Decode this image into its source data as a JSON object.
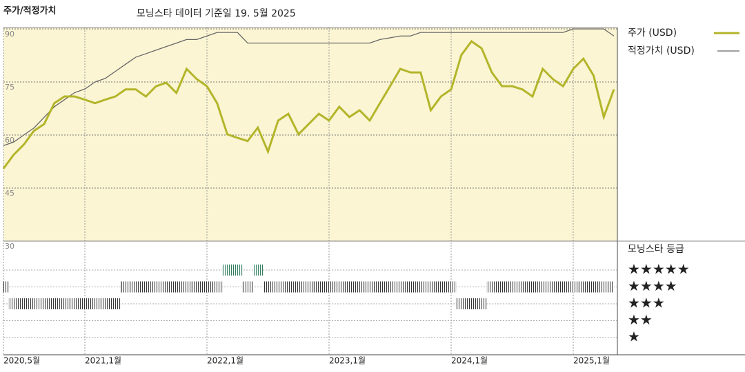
{
  "chart_data": {
    "type": "line",
    "title": "주가/적정가치",
    "subtitle": "모닝스타 데이터 기준일 19. 5월 2025",
    "x": [
      "2020-05",
      "2020-06",
      "2020-07",
      "2020-08",
      "2020-09",
      "2020-10",
      "2020-11",
      "2020-12",
      "2021-01",
      "2021-02",
      "2021-03",
      "2021-04",
      "2021-05",
      "2021-06",
      "2021-07",
      "2021-08",
      "2021-09",
      "2021-10",
      "2021-11",
      "2021-12",
      "2022-01",
      "2022-02",
      "2022-03",
      "2022-04",
      "2022-05",
      "2022-06",
      "2022-07",
      "2022-08",
      "2022-09",
      "2022-10",
      "2022-11",
      "2022-12",
      "2023-01",
      "2023-02",
      "2023-03",
      "2023-04",
      "2023-05",
      "2023-06",
      "2023-07",
      "2023-08",
      "2023-09",
      "2023-10",
      "2023-11",
      "2023-12",
      "2024-01",
      "2024-02",
      "2024-03",
      "2024-04",
      "2024-05",
      "2024-06",
      "2024-07",
      "2024-08",
      "2024-09",
      "2024-10",
      "2024-11",
      "2024-12",
      "2025-01",
      "2025-02",
      "2025-03",
      "2025-04",
      "2025-05"
    ],
    "series": [
      {
        "name": "주가 (USD)",
        "color": "#b3b52a",
        "values": [
          50.5,
          54.4,
          57.3,
          61.2,
          63.1,
          69,
          70.9,
          70.9,
          70,
          69,
          70,
          70.9,
          72.9,
          72.9,
          70.9,
          73.8,
          74.8,
          71.9,
          78.7,
          75.8,
          73.8,
          69,
          60.2,
          59.2,
          58.3,
          62.1,
          55.3,
          64.1,
          66,
          60.2,
          63.1,
          66,
          64.1,
          68,
          65.1,
          67,
          64.1,
          69,
          73.8,
          78.7,
          77.7,
          77.7,
          67,
          70.9,
          72.9,
          82.6,
          86.5,
          84.5,
          77.7,
          73.8,
          73.8,
          72.9,
          70.9,
          78.7,
          75.8,
          73.8,
          78.7,
          81.6,
          76.8,
          65.1,
          72.9
        ]
      },
      {
        "name": "적정가치 (USD)",
        "color": "#666666",
        "values": [
          57,
          58,
          60,
          62,
          65,
          68,
          70,
          72,
          73,
          75,
          76,
          78,
          80,
          82,
          83,
          84,
          85,
          86,
          87,
          87,
          88,
          89,
          89,
          89,
          86,
          86,
          86,
          86,
          86,
          86,
          86,
          86,
          86,
          86,
          86,
          86,
          86,
          87,
          87.5,
          88,
          88,
          89,
          89,
          89,
          89,
          89,
          89,
          89,
          89,
          89,
          89,
          89,
          89,
          89,
          89,
          89,
          90,
          90,
          90,
          90,
          88
        ]
      }
    ],
    "ylim": [
      30,
      90
    ],
    "yticks": [
      90,
      75,
      60,
      45,
      30
    ],
    "xticks": [
      {
        "value": "2020-05",
        "label": "2020,5월"
      },
      {
        "value": "2021-01",
        "label": "2021,1월"
      },
      {
        "value": "2022-01",
        "label": "2022,1월"
      },
      {
        "value": "2023-01",
        "label": "2023,1월"
      },
      {
        "value": "2024-01",
        "label": "2024,1월"
      },
      {
        "value": "2025-01",
        "label": "2025,1월"
      }
    ],
    "rating": {
      "title": "모닝스타 등급",
      "labels": [
        "★",
        "★★",
        "★★★",
        "★★★★",
        "★★★★★"
      ],
      "values": [
        4,
        3,
        3,
        3,
        3,
        3,
        3,
        3,
        3,
        3,
        3,
        3,
        4,
        4,
        4,
        4,
        4,
        4,
        4,
        4,
        4,
        4,
        5,
        5,
        4,
        5,
        4,
        4,
        4,
        4,
        4,
        4,
        4,
        4,
        4,
        4,
        4,
        4,
        4,
        4,
        4,
        4,
        4,
        4,
        4,
        3,
        3,
        3,
        4,
        4,
        4,
        4,
        4,
        4,
        4,
        4,
        4,
        4,
        4,
        4,
        4
      ],
      "colors": [
        "#333333",
        "#333333",
        "#333333",
        "#333333",
        "#2e7d5b"
      ]
    }
  }
}
